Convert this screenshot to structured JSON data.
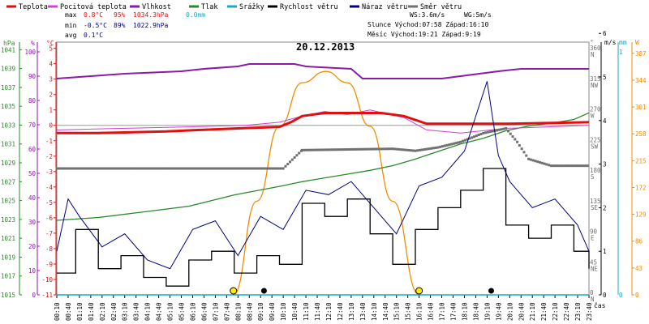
{
  "legend": [
    {
      "key": "temp",
      "label": "Teplota",
      "color": "#e01010"
    },
    {
      "key": "feels",
      "label": "Pocitová teplota",
      "color": "#d040d0"
    },
    {
      "key": "humidity",
      "label": "Vlhkost",
      "color": "#8a1aa8"
    },
    {
      "key": "pressure",
      "label": "Tlak",
      "color": "#2a8a2a"
    },
    {
      "key": "rain",
      "label": "Srážky",
      "color": "#18a8c8"
    },
    {
      "key": "wind_speed",
      "label": "Rychlost větru",
      "color": "#000000"
    },
    {
      "key": "gust",
      "label": "Náraz větru",
      "color": "#000080"
    },
    {
      "key": "wind_dir",
      "label": "Směr větru",
      "color": "#707070"
    }
  ],
  "stats": {
    "max": {
      "label": "max",
      "temp": "0.8°C",
      "hum": "95%",
      "press": "1034.3hPa",
      "rain": "0.0mm"
    },
    "min": {
      "label": "min",
      "temp": "-0.5°C",
      "hum": "89%",
      "press": "1022.9hPa"
    },
    "avg": {
      "label": "avg",
      "temp": "0.1°C"
    }
  },
  "info": {
    "ws": "WS:3.6m/s",
    "wg": "WG:5m/s",
    "sun": "Slunce Východ:07:58  Západ:16:10",
    "moon": "Měsíc  Východ:19:21  Západ:9:19"
  },
  "date": "20.12.2013",
  "axes": {
    "hpa_unit": "hPa",
    "pct_unit": "%",
    "c_unit": "°C",
    "deg_unit": "°",
    "ms_unit": "m/s",
    "mm_unit": "mm",
    "w_unit": "W",
    "time_label": "čas",
    "hpa_ticks": [
      "1041",
      "1039",
      "1037",
      "1035",
      "1033",
      "1031",
      "1029",
      "1027",
      "1025",
      "1023",
      "1021",
      "1019",
      "1017",
      "1015"
    ],
    "pct_ticks": [
      "100",
      "90",
      "80",
      "70",
      "60",
      "50",
      "40",
      "30",
      "20",
      "10",
      "0"
    ],
    "c_ticks": [
      "5",
      "4",
      "3",
      "2",
      "1",
      "0",
      "-1",
      "-2",
      "-3",
      "-4",
      "-5",
      "-6",
      "-7",
      "-8",
      "-9",
      "-10",
      "-11"
    ],
    "dir_ticks": [
      {
        "deg": "360",
        "name": "N"
      },
      {
        "deg": "315",
        "name": "NW"
      },
      {
        "deg": "270",
        "name": "W"
      },
      {
        "deg": "225",
        "name": "SW"
      },
      {
        "deg": "180",
        "name": "S"
      },
      {
        "deg": "135",
        "name": "SE"
      },
      {
        "deg": "90",
        "name": "E"
      },
      {
        "deg": "45",
        "name": "NE"
      },
      {
        "deg": "0",
        "name": "N"
      }
    ],
    "ms_ticks": [
      "6",
      "5",
      "4",
      "3",
      "2",
      "1",
      "0"
    ],
    "mm_ticks": [
      "1",
      "0"
    ],
    "w_ticks": [
      "387",
      "344",
      "301",
      "258",
      "215",
      "172",
      "129",
      "86",
      "43",
      "0"
    ],
    "x_ticks": [
      "00:10",
      "00:40",
      "01:10",
      "01:40",
      "02:10",
      "02:40",
      "03:10",
      "03:40",
      "04:10",
      "04:40",
      "05:10",
      "05:40",
      "06:10",
      "06:40",
      "07:10",
      "07:40",
      "08:10",
      "08:40",
      "09:10",
      "09:40",
      "10:10",
      "10:40",
      "11:10",
      "11:40",
      "12:10",
      "12:40",
      "13:10",
      "13:40",
      "14:10",
      "14:40",
      "15:10",
      "15:40",
      "16:10",
      "16:40",
      "17:10",
      "17:40",
      "18:10",
      "18:40",
      "19:10",
      "19:40",
      "20:10",
      "20:40",
      "21:10",
      "21:40",
      "22:10",
      "22:40",
      "23:10",
      "23:40"
    ]
  },
  "chart_data": {
    "type": "line",
    "title": "20.12.2013",
    "x_range": [
      "00:10",
      "23:40"
    ],
    "series": [
      {
        "name": "Teplota",
        "unit": "°C",
        "x": [
          "00:10",
          "02:00",
          "05:00",
          "06:30",
          "08:10",
          "10:00",
          "10:30",
          "11:00",
          "12:00",
          "14:30",
          "15:30",
          "16:30",
          "18:00",
          "20:00",
          "23:40"
        ],
        "values": [
          -0.5,
          -0.5,
          -0.4,
          -0.3,
          -0.2,
          -0.1,
          0.2,
          0.6,
          0.8,
          0.8,
          0.6,
          0.1,
          0.1,
          0.1,
          0.2
        ]
      },
      {
        "name": "Pocitová teplota",
        "unit": "°C",
        "x": [
          "00:10",
          "03:00",
          "06:00",
          "08:30",
          "10:00",
          "11:00",
          "12:00",
          "13:00",
          "14:00",
          "15:30",
          "16:30",
          "18:00",
          "20:00",
          "23:40"
        ],
        "values": [
          -0.3,
          -0.2,
          -0.1,
          0.0,
          0.2,
          0.6,
          0.9,
          0.7,
          1.0,
          0.5,
          -0.3,
          -0.5,
          -0.2,
          0.0
        ]
      },
      {
        "name": "Vlhkost",
        "unit": "%",
        "x": [
          "00:10",
          "01:40",
          "03:10",
          "05:40",
          "06:40",
          "08:10",
          "08:40",
          "10:40",
          "11:10",
          "13:10",
          "13:40",
          "16:10",
          "17:10",
          "19:40",
          "20:40",
          "23:40"
        ],
        "values": [
          89,
          90,
          91,
          92,
          93,
          94,
          95,
          95,
          94,
          93,
          89,
          89,
          89,
          92,
          93,
          93
        ]
      },
      {
        "name": "Tlak",
        "unit": "hPa",
        "x": [
          "00:10",
          "02:00",
          "04:00",
          "06:00",
          "07:00",
          "08:00",
          "10:00",
          "11:00",
          "12:00",
          "13:00",
          "14:00",
          "15:00",
          "16:00",
          "17:00",
          "18:00",
          "19:00",
          "20:00",
          "21:00",
          "22:00",
          "23:00",
          "23:40"
        ],
        "values": [
          1022.9,
          1023.2,
          1023.8,
          1024.4,
          1025.0,
          1025.6,
          1026.5,
          1027.0,
          1027.4,
          1027.8,
          1028.2,
          1028.7,
          1029.4,
          1030.2,
          1031.0,
          1031.6,
          1032.4,
          1032.9,
          1033.2,
          1033.6,
          1034.3
        ]
      },
      {
        "name": "Srážky",
        "unit": "mm",
        "x": [
          "00:10",
          "23:40"
        ],
        "values": [
          0.0,
          0.0
        ]
      },
      {
        "name": "Rychlost větru",
        "unit": "m/s",
        "x": [
          "00:10",
          "01:00",
          "02:00",
          "03:00",
          "04:00",
          "05:00",
          "06:00",
          "07:00",
          "08:00",
          "09:00",
          "10:00",
          "11:00",
          "12:00",
          "13:00",
          "14:00",
          "15:00",
          "16:00",
          "17:00",
          "18:00",
          "19:00",
          "20:00",
          "21:00",
          "22:00",
          "23:00",
          "23:40"
        ],
        "values": [
          0.5,
          1.5,
          0.6,
          0.9,
          0.4,
          0.2,
          0.8,
          1.0,
          0.5,
          0.9,
          0.7,
          2.1,
          1.8,
          2.2,
          1.4,
          0.7,
          1.5,
          2.0,
          2.4,
          2.9,
          1.6,
          1.3,
          1.6,
          1.0,
          0.6
        ]
      },
      {
        "name": "Náraz větru",
        "unit": "m/s",
        "x": [
          "00:10",
          "00:40",
          "01:10",
          "02:10",
          "03:10",
          "04:10",
          "05:10",
          "06:10",
          "07:10",
          "08:10",
          "09:10",
          "10:10",
          "11:10",
          "12:10",
          "13:10",
          "14:10",
          "15:10",
          "16:10",
          "17:10",
          "18:10",
          "19:10",
          "19:40",
          "20:10",
          "21:10",
          "22:10",
          "23:10",
          "23:40"
        ],
        "values": [
          1.0,
          2.2,
          1.8,
          1.1,
          1.4,
          0.8,
          0.6,
          1.5,
          1.7,
          0.9,
          1.8,
          1.5,
          2.4,
          2.3,
          2.6,
          2.0,
          1.4,
          2.5,
          2.7,
          3.3,
          4.9,
          3.2,
          2.6,
          2.0,
          2.2,
          1.6,
          1.0
        ]
      },
      {
        "name": "Směr větru",
        "unit": "°",
        "x": [
          "00:10",
          "08:00",
          "10:10",
          "11:00",
          "15:00",
          "16:00",
          "17:00",
          "18:00",
          "19:00",
          "20:00",
          "20:30",
          "21:00",
          "22:00",
          "23:40"
        ],
        "values": [
          186,
          186,
          186,
          213,
          215,
          212,
          217,
          225,
          238,
          245,
          225,
          200,
          190,
          190
        ]
      },
      {
        "name": "Sluneční záření",
        "unit": "W",
        "x": [
          "07:58",
          "09:00",
          "10:00",
          "11:00",
          "12:03",
          "13:00",
          "14:00",
          "15:00",
          "16:10"
        ],
        "values": [
          0,
          150,
          270,
          340,
          358,
          340,
          270,
          150,
          0
        ]
      }
    ]
  }
}
